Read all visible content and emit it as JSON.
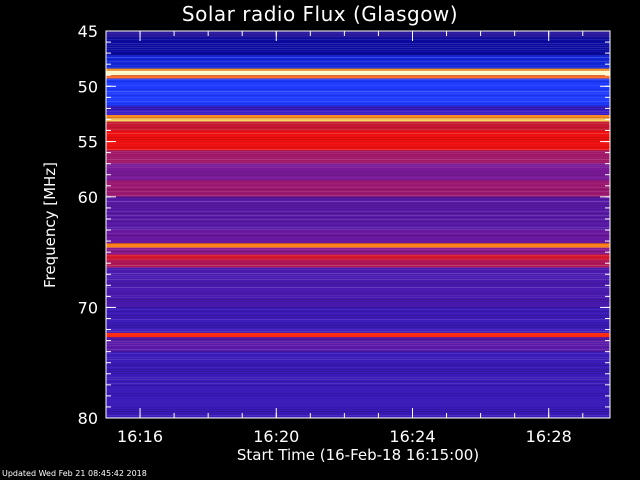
{
  "chart_data": {
    "type": "heatmap",
    "title": "Solar radio Flux (Glasgow)",
    "ylabel": "Frequency [MHz]",
    "xlabel": "Start Time (16-Feb-18 16:15:00)",
    "yticks": [
      45,
      50,
      55,
      60,
      70,
      80
    ],
    "ytick_labels": [
      "45",
      "50",
      "55",
      "60",
      "70",
      "80"
    ],
    "ylim": [
      45,
      80
    ],
    "xticks": [
      "16:16",
      "16:20",
      "16:24",
      "16:28"
    ],
    "xtick_minutes": [
      1,
      5,
      9,
      13
    ],
    "xlim_minutes": [
      0,
      14.8
    ],
    "colors": {
      "background": "#000000",
      "axes": "#ffffff"
    },
    "bands": [
      {
        "f0": 45.0,
        "f1": 45.6,
        "color": "#2a1aa0"
      },
      {
        "f0": 45.6,
        "f1": 47.2,
        "color": "#0a0aa0"
      },
      {
        "f0": 47.2,
        "f1": 48.4,
        "color": "#1226d8"
      },
      {
        "f0": 48.4,
        "f1": 48.6,
        "color": "#ff9a20"
      },
      {
        "f0": 48.6,
        "f1": 49.0,
        "color": "#fff8c8"
      },
      {
        "f0": 49.0,
        "f1": 49.3,
        "color": "#ff6a20"
      },
      {
        "f0": 49.3,
        "f1": 51.8,
        "color": "#1e3aff"
      },
      {
        "f0": 51.8,
        "f1": 52.6,
        "color": "#3a1ec8"
      },
      {
        "f0": 52.6,
        "f1": 52.9,
        "color": "#ff8a20"
      },
      {
        "f0": 52.9,
        "f1": 53.2,
        "color": "#ffd060"
      },
      {
        "f0": 53.2,
        "f1": 54.0,
        "color": "#c81830"
      },
      {
        "f0": 54.0,
        "f1": 55.8,
        "color": "#ee1010"
      },
      {
        "f0": 55.8,
        "f1": 57.0,
        "color": "#a01868"
      },
      {
        "f0": 57.0,
        "f1": 58.5,
        "color": "#7a1a98"
      },
      {
        "f0": 58.5,
        "f1": 60.0,
        "color": "#9a1870"
      },
      {
        "f0": 60.0,
        "f1": 63.0,
        "color": "#5a1aa8"
      },
      {
        "f0": 63.0,
        "f1": 64.2,
        "color": "#6a18a0"
      },
      {
        "f0": 64.2,
        "f1": 64.6,
        "color": "#ff7a10"
      },
      {
        "f0": 64.6,
        "f1": 65.2,
        "color": "#8a1a90"
      },
      {
        "f0": 65.2,
        "f1": 65.7,
        "color": "#d81830"
      },
      {
        "f0": 65.7,
        "f1": 66.4,
        "color": "#b01858"
      },
      {
        "f0": 66.4,
        "f1": 70.0,
        "color": "#4a1ab0"
      },
      {
        "f0": 70.0,
        "f1": 72.3,
        "color": "#3c1ab8"
      },
      {
        "f0": 72.3,
        "f1": 72.7,
        "color": "#ff2a10"
      },
      {
        "f0": 72.7,
        "f1": 74.0,
        "color": "#5a1aa8"
      },
      {
        "f0": 74.0,
        "f1": 80.0,
        "color": "#3a1ab8"
      }
    ]
  }
}
